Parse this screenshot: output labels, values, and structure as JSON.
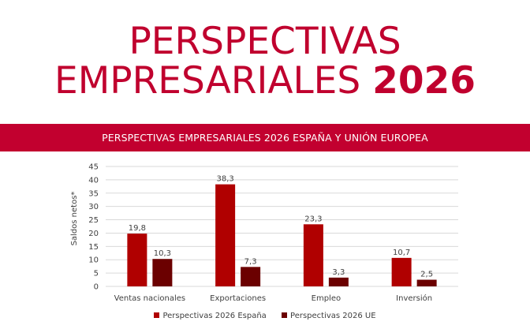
{
  "header": {
    "title_line1": "PERSPECTIVAS",
    "title_line2_regular": "EMPRESARIALES ",
    "title_line2_bold": "2026",
    "title_color": "#C0002E"
  },
  "banner": {
    "text": "PERSPECTIVAS EMPRESARIALES 2026 ESPAÑA Y UNIÓN EUROPEA",
    "color": "#C2002F"
  },
  "chart_data": {
    "type": "bar",
    "title": "PERSPECTIVAS EMPRESARIALES 2026 ESPAÑA Y UNIÓN EUROPEA",
    "xlabel": "",
    "ylabel": "Saldos netos*",
    "categories": [
      "Ventas nacionales",
      "Exportaciones",
      "Empleo",
      "Inversión"
    ],
    "series": [
      {
        "name": "Perspectivas 2026 España",
        "values": [
          19.8,
          38.3,
          23.3,
          10.7
        ],
        "labels": [
          "19,8",
          "38,3",
          "23,3",
          "10,7"
        ],
        "color": "#B00000"
      },
      {
        "name": "Perspectivas 2026 UE",
        "values": [
          10.3,
          7.3,
          3.3,
          2.5
        ],
        "labels": [
          "10,3",
          "7,3",
          "3,3",
          "2,5"
        ],
        "color": "#6B0000"
      }
    ],
    "ylim": [
      0,
      45
    ],
    "yticks": [
      0,
      5,
      10,
      15,
      20,
      25,
      30,
      35,
      40,
      45
    ],
    "grid": true,
    "legend_position": "bottom"
  }
}
